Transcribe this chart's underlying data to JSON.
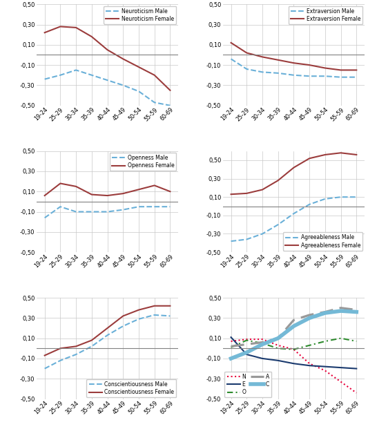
{
  "x_labels": [
    "19-24",
    "25-29",
    "30-34",
    "35-39",
    "40-44",
    "45-49",
    "50-54",
    "55-59",
    "60-69"
  ],
  "neuroticism_male": [
    -0.24,
    -0.2,
    -0.15,
    -0.2,
    -0.25,
    -0.3,
    -0.36,
    -0.47,
    -0.5
  ],
  "neuroticism_female": [
    0.22,
    0.28,
    0.27,
    0.18,
    0.05,
    -0.04,
    -0.12,
    -0.2,
    -0.35
  ],
  "extraversion_male": [
    -0.04,
    -0.14,
    -0.17,
    -0.18,
    -0.2,
    -0.21,
    -0.21,
    -0.22,
    -0.22
  ],
  "extraversion_female": [
    0.12,
    0.02,
    -0.02,
    -0.05,
    -0.08,
    -0.1,
    -0.13,
    -0.15,
    -0.15
  ],
  "openness_male": [
    -0.16,
    -0.05,
    -0.1,
    -0.1,
    -0.1,
    -0.08,
    -0.05,
    -0.05,
    -0.05
  ],
  "openness_female": [
    0.06,
    0.18,
    0.15,
    0.07,
    0.06,
    0.08,
    0.12,
    0.16,
    0.1
  ],
  "agreeableness_male": [
    -0.38,
    -0.36,
    -0.3,
    -0.2,
    -0.08,
    0.02,
    0.08,
    0.1,
    0.1
  ],
  "agreeableness_female": [
    0.13,
    0.14,
    0.18,
    0.28,
    0.42,
    0.52,
    0.56,
    0.58,
    0.56
  ],
  "conscientiousness_male": [
    -0.2,
    -0.12,
    -0.06,
    0.02,
    0.13,
    0.22,
    0.29,
    0.33,
    0.32
  ],
  "conscientiousness_female": [
    -0.07,
    0.0,
    0.02,
    0.08,
    0.2,
    0.32,
    0.38,
    0.42,
    0.42
  ],
  "combo_N": [
    0.07,
    0.09,
    0.09,
    0.03,
    -0.01,
    -0.15,
    -0.22,
    -0.33,
    -0.44
  ],
  "combo_E": [
    0.11,
    -0.06,
    -0.1,
    -0.12,
    -0.15,
    -0.17,
    -0.18,
    -0.19,
    -0.2
  ],
  "combo_O": [
    0.01,
    0.08,
    0.05,
    0.0,
    -0.01,
    0.03,
    0.07,
    0.1,
    0.07
  ],
  "combo_A": [
    0.02,
    0.04,
    0.06,
    0.1,
    0.28,
    0.33,
    0.36,
    0.4,
    0.38
  ],
  "combo_C": [
    -0.1,
    -0.04,
    0.04,
    0.1,
    0.22,
    0.3,
    0.35,
    0.37,
    0.36
  ],
  "male_color": "#6ab0d8",
  "female_color": "#9b3c3c",
  "combo_N_color": "#e8003a",
  "combo_E_color": "#1a3a6e",
  "combo_O_color": "#2e8b2e",
  "combo_A_color": "#999999",
  "combo_C_color": "#74b9d6",
  "ylim_regular": [
    -0.5,
    0.5
  ],
  "ylim_agree": [
    -0.5,
    0.6
  ],
  "yticks_regular": [
    -0.5,
    -0.3,
    -0.1,
    0.1,
    0.3,
    0.5
  ],
  "yticks_agree": [
    -0.5,
    -0.3,
    -0.1,
    0.1,
    0.3,
    0.5
  ],
  "line_width": 1.5
}
